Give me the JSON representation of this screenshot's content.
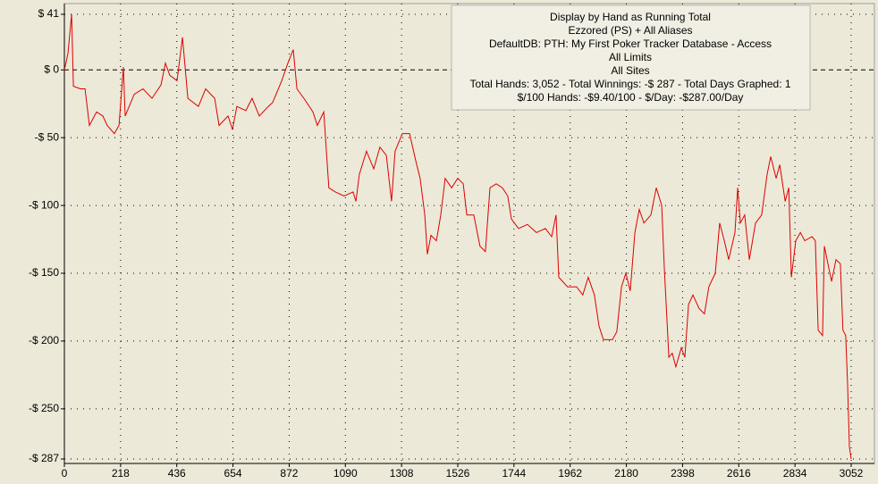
{
  "chart_data": {
    "type": "line",
    "annotations": [
      "Display by Hand as Running Total",
      "Ezzored (PS) + All Aliases",
      "DefaultDB: PTH: My First Poker Tracker Database - Access",
      "All Limits",
      "All Sites",
      "Total Hands: 3,052 - Total Winnings: -$ 287 - Total Days Graphed: 1",
      "$/100 Hands: -$9.40/100 - $/Day: -$287.00/Day"
    ],
    "x": [
      0,
      14,
      28,
      35,
      62,
      80,
      97,
      125,
      149,
      166,
      194,
      212,
      229,
      236,
      271,
      305,
      340,
      375,
      392,
      409,
      437,
      458,
      479,
      520,
      548,
      583,
      600,
      635,
      652,
      669,
      704,
      728,
      756,
      791,
      808,
      843,
      867,
      888,
      902,
      929,
      964,
      981,
      1006,
      1026,
      1051,
      1085,
      1120,
      1131,
      1144,
      1172,
      1200,
      1224,
      1249,
      1269,
      1283,
      1311,
      1339,
      1363,
      1380,
      1398,
      1408,
      1422,
      1443,
      1460,
      1477,
      1502,
      1526,
      1547,
      1561,
      1588,
      1612,
      1633,
      1651,
      1675,
      1699,
      1720,
      1734,
      1762,
      1796,
      1831,
      1866,
      1890,
      1907,
      1918,
      1952,
      1987,
      2011,
      2032,
      2056,
      2074,
      2091,
      2126,
      2143,
      2161,
      2178,
      2195,
      2213,
      2230,
      2248,
      2275,
      2296,
      2317,
      2327,
      2345,
      2358,
      2372,
      2393,
      2407,
      2421,
      2438,
      2462,
      2483,
      2500,
      2525,
      2542,
      2560,
      2577,
      2601,
      2612,
      2622,
      2639,
      2657,
      2681,
      2705,
      2726,
      2740,
      2761,
      2775,
      2796,
      2810,
      2820,
      2837,
      2855,
      2872,
      2900,
      2913,
      2924,
      2941,
      2948,
      2962,
      2976,
      2993,
      3010,
      3020,
      3031,
      3038,
      3045,
      3052
    ],
    "values": [
      0,
      12,
      41,
      -12,
      -14,
      -14,
      -41,
      -31,
      -34,
      -41,
      -47,
      -41,
      2,
      -34,
      -18,
      -14,
      -21,
      -11,
      5,
      -4,
      -8,
      24,
      -21,
      -27,
      -14,
      -21,
      -41,
      -34,
      -44,
      -27,
      -30,
      -21,
      -34,
      -27,
      -24,
      -8,
      5,
      15,
      -14,
      -21,
      -31,
      -41,
      -31,
      -87,
      -90,
      -93,
      -90,
      -97,
      -77,
      -60,
      -73,
      -57,
      -63,
      -97,
      -60,
      -47,
      -47,
      -67,
      -80,
      -107,
      -136,
      -122,
      -126,
      -107,
      -80,
      -87,
      -80,
      -84,
      -107,
      -107,
      -130,
      -134,
      -87,
      -84,
      -87,
      -93,
      -110,
      -117,
      -114,
      -120,
      -117,
      -123,
      -107,
      -153,
      -160,
      -160,
      -166,
      -153,
      -166,
      -189,
      -199,
      -199,
      -193,
      -160,
      -150,
      -163,
      -120,
      -103,
      -113,
      -107,
      -87,
      -100,
      -146,
      -212,
      -209,
      -219,
      -205,
      -212,
      -173,
      -166,
      -176,
      -180,
      -160,
      -150,
      -113,
      -126,
      -140,
      -120,
      -87,
      -113,
      -107,
      -140,
      -113,
      -107,
      -77,
      -64,
      -80,
      -70,
      -97,
      -87,
      -153,
      -126,
      -120,
      -126,
      -123,
      -126,
      -192,
      -196,
      -130,
      -143,
      -156,
      -140,
      -143,
      -192,
      -196,
      -232,
      -278,
      -287
    ],
    "color": "#dd0000",
    "xlim": [
      0,
      3052
    ],
    "ylim": [
      -287,
      41
    ],
    "xticks": [
      0,
      218,
      436,
      654,
      872,
      1090,
      1308,
      1526,
      1744,
      1962,
      2180,
      2398,
      2616,
      2834,
      3052
    ],
    "yticks": [
      {
        "value": 41,
        "label": "$ 41"
      },
      {
        "value": 0,
        "label": "$ 0"
      },
      {
        "value": -50,
        "label": "-$ 50"
      },
      {
        "value": -100,
        "label": "-$ 100"
      },
      {
        "value": -150,
        "label": "-$ 150"
      },
      {
        "value": -200,
        "label": "-$ 200"
      },
      {
        "value": -250,
        "label": "-$ 250"
      },
      {
        "value": -287,
        "label": "-$ 287"
      }
    ],
    "grid": true
  }
}
